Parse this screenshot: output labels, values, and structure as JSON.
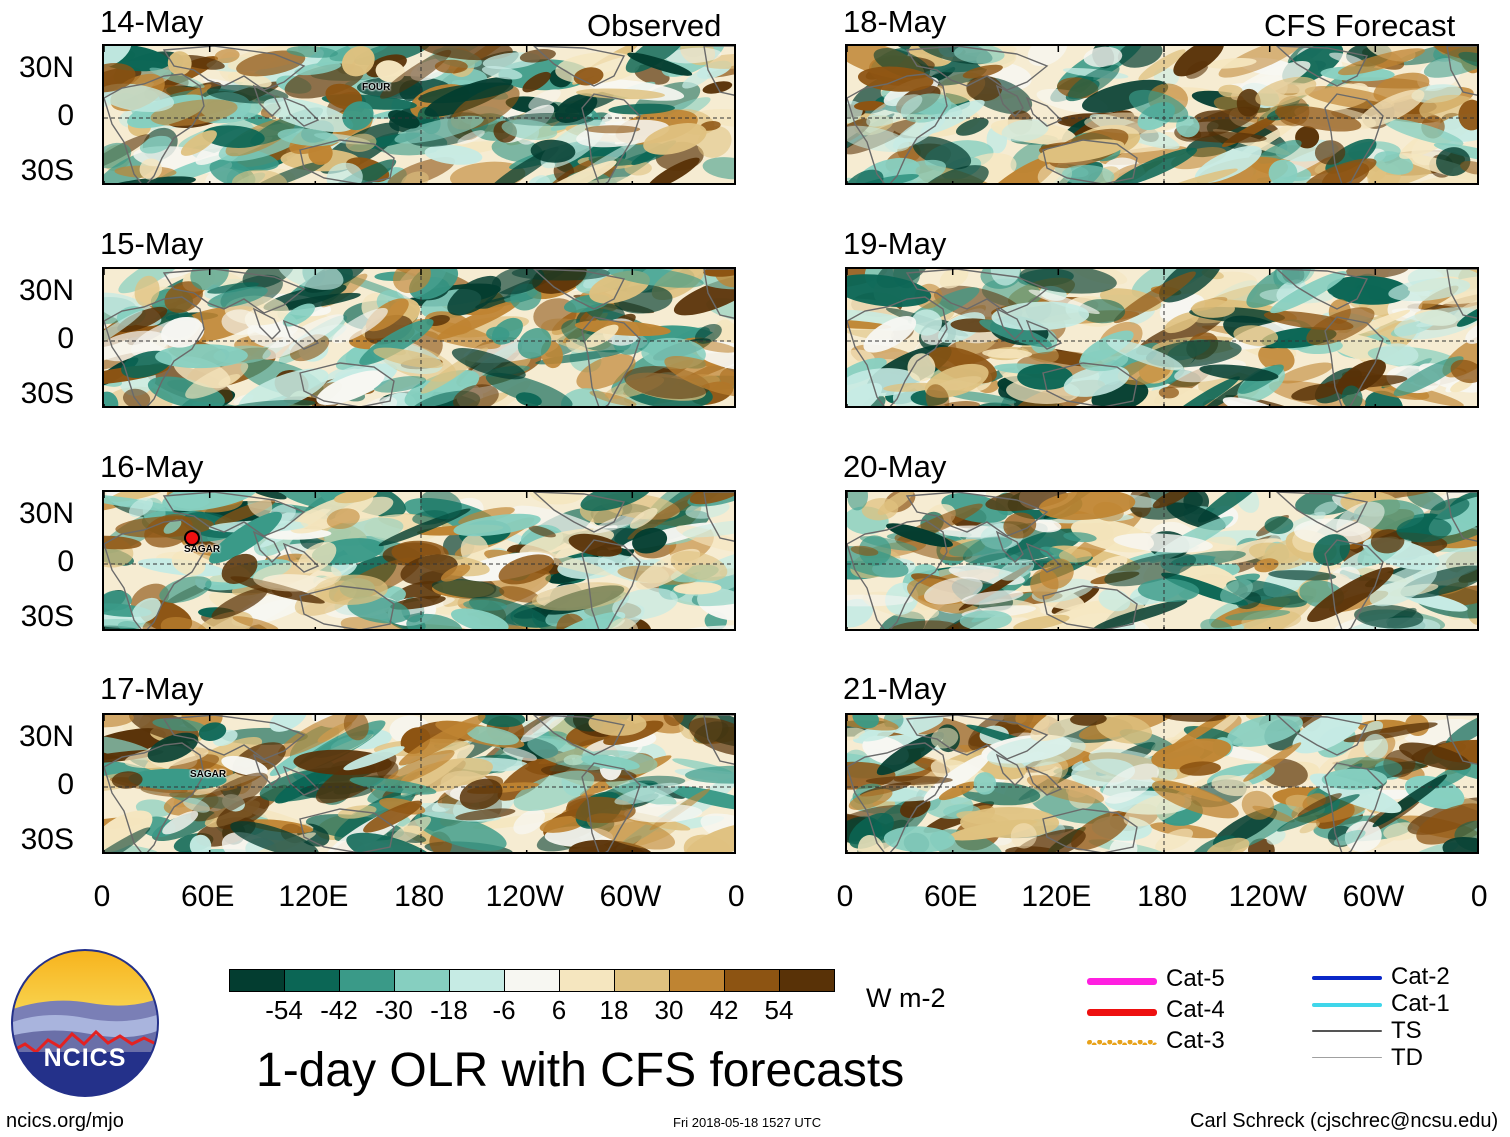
{
  "left_column": {
    "header": "Observed",
    "panels": [
      {
        "date": "14-May",
        "storms": [
          {
            "name": "FOUR"
          }
        ]
      },
      {
        "date": "15-May",
        "storms": []
      },
      {
        "date": "16-May",
        "storms": [
          {
            "name": "SAGAR"
          }
        ]
      },
      {
        "date": "17-May",
        "storms": [
          {
            "name": "SAGAR"
          }
        ]
      }
    ]
  },
  "right_column": {
    "header": "CFS Forecast",
    "panels": [
      {
        "date": "18-May"
      },
      {
        "date": "19-May"
      },
      {
        "date": "20-May"
      },
      {
        "date": "21-May"
      }
    ]
  },
  "lat_labels": [
    "30N",
    "0",
    "30S"
  ],
  "lon_labels": [
    "0",
    "60E",
    "120E",
    "180",
    "120W",
    "60W",
    "0"
  ],
  "colorbar": {
    "units": "W m-2",
    "colors": [
      "#033d30",
      "#0b6655",
      "#3a9a88",
      "#86cfc0",
      "#c6ebe4",
      "#f7f7f2",
      "#f5e6bf",
      "#dfc17f",
      "#bf8432",
      "#8d5412",
      "#593207"
    ],
    "labels": [
      "-54",
      "-42",
      "-30",
      "-18",
      "-6",
      "6",
      "18",
      "30",
      "42",
      "54"
    ]
  },
  "legend": {
    "left": [
      {
        "label": "Cat-5",
        "color": "#ff1fe0"
      },
      {
        "label": "Cat-4",
        "color": "#ee1010"
      },
      {
        "label": "Cat-3",
        "color": "#e8a21a"
      }
    ],
    "right": [
      {
        "label": "Cat-2",
        "color": "#0a27c8"
      },
      {
        "label": "Cat-1",
        "color": "#3fd6ea"
      },
      {
        "label": "TS",
        "color": "#555555"
      },
      {
        "label": "TD",
        "color": "#a0a0a0"
      }
    ]
  },
  "logo_text": "NCICS",
  "title": "1-day OLR with CFS forecasts",
  "footer": {
    "url": "ncics.org/mjo",
    "timestamp": "Fri 2018-05-18 1527 UTC",
    "credit": "Carl Schreck (cjschrec@ncsu.edu)"
  }
}
